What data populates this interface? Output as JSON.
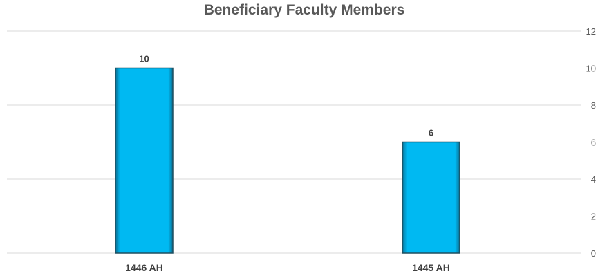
{
  "chart_data": {
    "type": "bar",
    "title": "Beneficiary Faculty Members",
    "categories": [
      "1446 AH",
      "1445 AH"
    ],
    "values": [
      10,
      6
    ],
    "ylim": [
      0,
      12
    ],
    "yticks": [
      0,
      2,
      4,
      6,
      8,
      10,
      12
    ],
    "y_axis_side": "right",
    "grid": true,
    "legend": "none",
    "data_labels": true,
    "colors": {
      "bar": "#00b9f2",
      "bar_edge": "#1f4e5f",
      "grid": "#d9d9d9",
      "text": "#595959"
    }
  }
}
